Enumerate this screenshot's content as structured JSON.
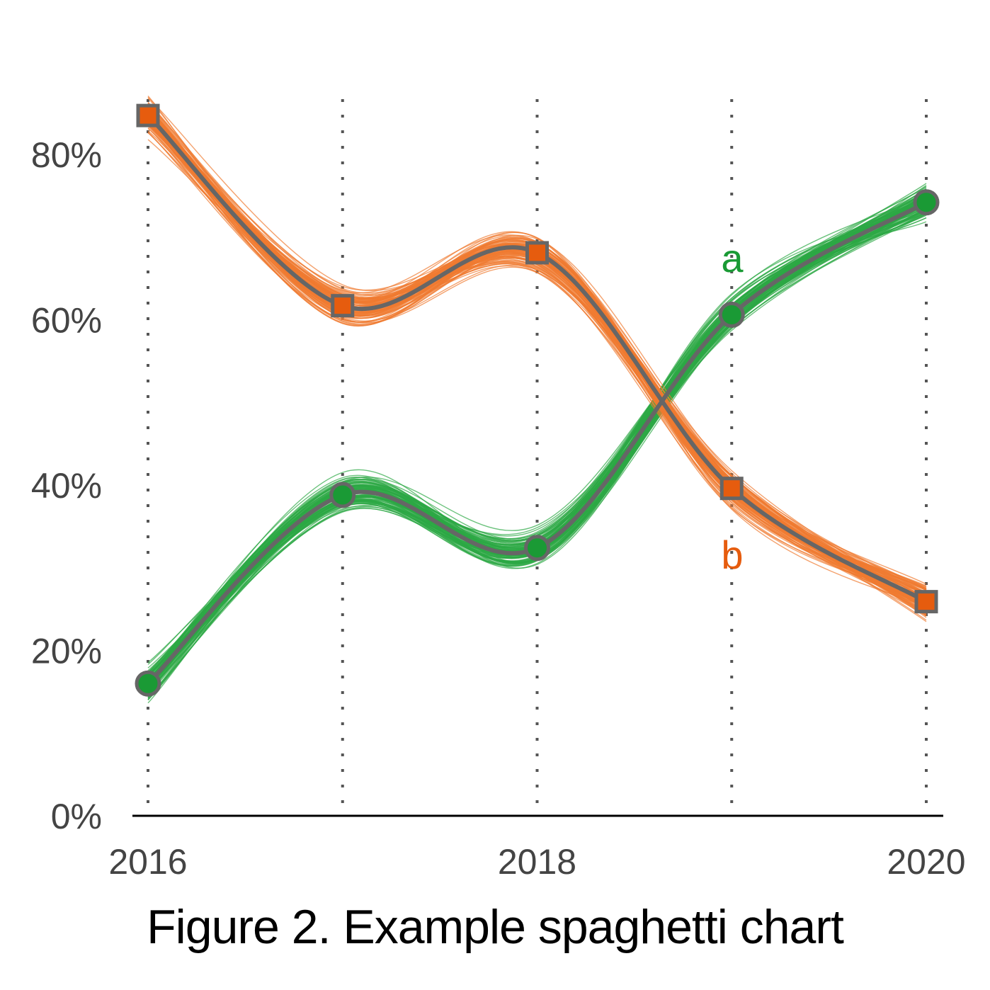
{
  "figure_caption": "Figure 2. Example spaghetti chart",
  "chart_data": {
    "type": "line",
    "x": [
      2016,
      2017,
      2018,
      2019,
      2020
    ],
    "x_tick_labels": [
      "2016",
      "2018",
      "2020"
    ],
    "x_tick_values": [
      2016,
      2018,
      2020
    ],
    "y_tick_labels": [
      "0%",
      "20%",
      "40%",
      "60%",
      "80%"
    ],
    "y_tick_values": [
      0,
      20,
      40,
      60,
      80
    ],
    "ylim": [
      0,
      88
    ],
    "xlim": [
      2016,
      2020
    ],
    "vertical_gridlines": "dotted at each year",
    "mean_line_color": "#666666",
    "series": [
      {
        "name": "a",
        "color": "#1a9a35",
        "spaghetti_color": "#2ca845",
        "marker": "circle",
        "values": [
          16,
          38.8,
          32.4,
          60.6,
          74.2
        ]
      },
      {
        "name": "b",
        "color": "#e65c0e",
        "spaghetti_color": "#f07a30",
        "marker": "square",
        "values": [
          84.7,
          61.7,
          68.1,
          39.6,
          25.9
        ]
      }
    ],
    "spaghetti_lines_per_series": 100
  }
}
